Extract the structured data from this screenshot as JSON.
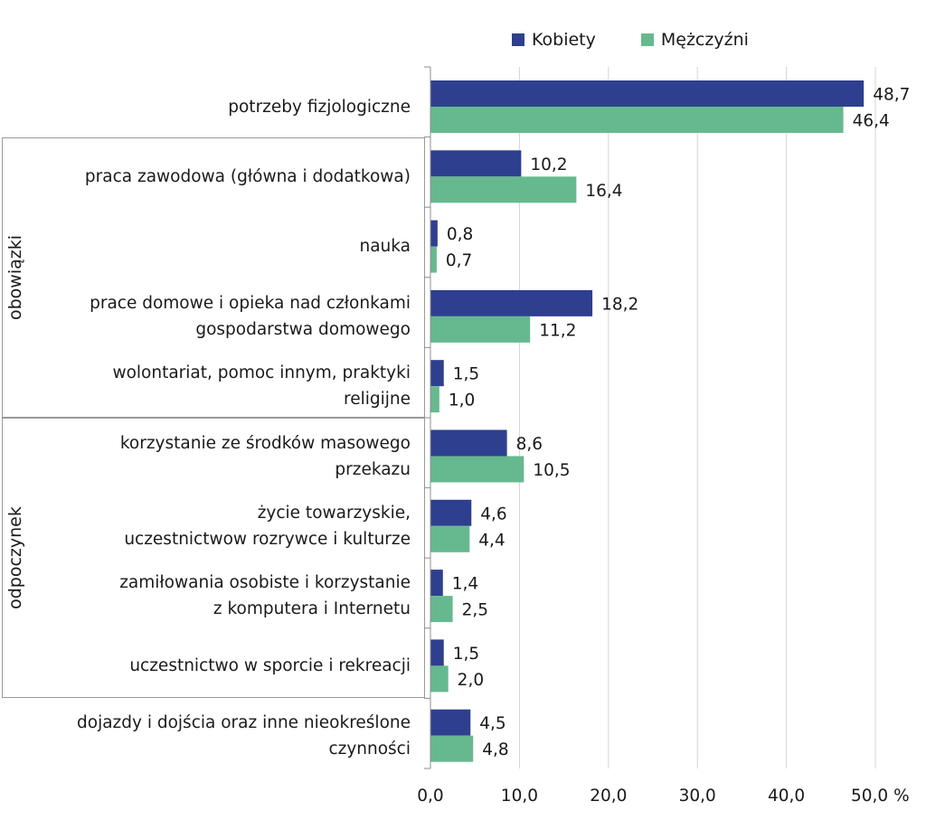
{
  "chart_data": {
    "type": "bar",
    "orientation": "horizontal",
    "categories": [
      [
        "potrzeby fizjologiczne"
      ],
      [
        "praca zawodowa (główna i dodatkowa)"
      ],
      [
        "nauka"
      ],
      [
        "prace domowe i opieka nad członkami",
        "gospodarstwa domowego"
      ],
      [
        "wolontariat, pomoc innym, praktyki",
        "religijne"
      ],
      [
        "korzystanie ze środków masowego",
        "przekazu"
      ],
      [
        "życie towarzyskie,",
        "uczestnictwow rozrywce i kulturze"
      ],
      [
        "zamiłowania osobiste i korzystanie",
        "z komputera i Internetu"
      ],
      [
        "uczestnictwo w sporcie i rekreacji"
      ],
      [
        "dojazdy i dojścia oraz inne nieokreślone",
        "czynności"
      ]
    ],
    "series": [
      {
        "name": "Kobiety",
        "color": "#2e3f8f",
        "values": [
          48.7,
          10.2,
          0.8,
          18.2,
          1.5,
          8.6,
          4.6,
          1.4,
          1.5,
          4.5
        ],
        "labels": [
          "48,7",
          "10,2",
          "0,8",
          "18,2",
          "1,5",
          "8,6",
          "4,6",
          "1,4",
          "1,5",
          "4,5"
        ]
      },
      {
        "name": "Mężczyźni",
        "color": "#66b98e",
        "values": [
          46.4,
          16.4,
          0.7,
          11.2,
          1.0,
          10.5,
          4.4,
          2.5,
          2.0,
          4.8
        ],
        "labels": [
          "46,4",
          "16,4",
          "0,7",
          "11,2",
          "1,0",
          "10,5",
          "4,4",
          "2,5",
          "2,0",
          "4,8"
        ]
      }
    ],
    "groups": [
      {
        "label": "obowiązki",
        "categories": [
          1,
          2,
          3,
          4
        ]
      },
      {
        "label": "odpoczynek",
        "categories": [
          5,
          6,
          7,
          8
        ]
      }
    ],
    "xlim": [
      0,
      50
    ],
    "xticks": [
      0,
      10,
      20,
      30,
      40,
      50
    ],
    "xtick_labels": [
      "0,0",
      "10,0",
      "20,0",
      "30,0",
      "40,0",
      "50,0 %"
    ],
    "legend_position": "top",
    "grid": true
  }
}
